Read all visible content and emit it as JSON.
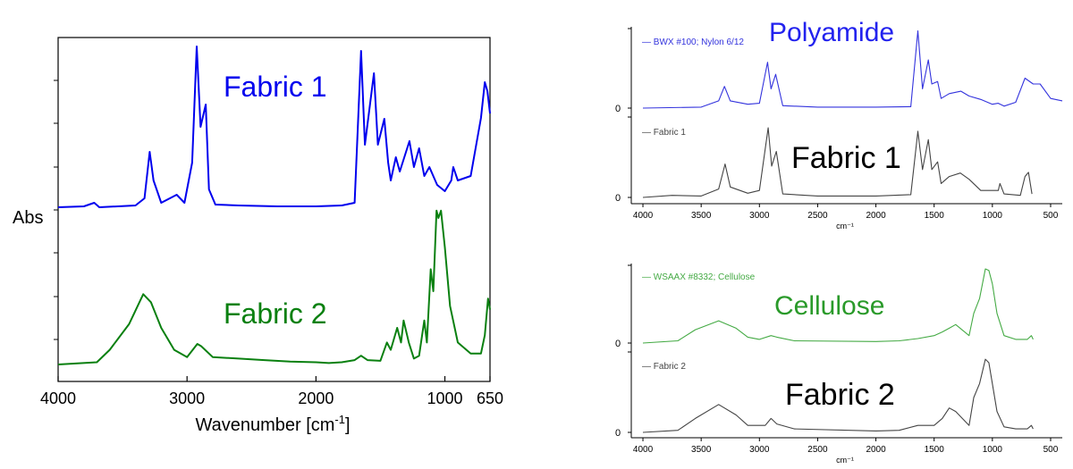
{
  "chart_data": [
    {
      "type": "line",
      "panel": "left",
      "xlabel": "Wavenumber [cm-1]",
      "xlabel_main": "Wavenumber [cm",
      "xlabel_sup": "-1",
      "xlabel_end": "]",
      "ylabel": "Abs",
      "xlim": [
        4000,
        650
      ],
      "x_ticks": [
        "4000",
        "3000",
        "2000",
        "1000",
        "650"
      ],
      "series": [
        {
          "name": "Fabric 1",
          "color": "#0000ee",
          "label": "Fabric 1",
          "points": [
            [
              4000,
              0
            ],
            [
              3800,
              0.01
            ],
            [
              3720,
              0.05
            ],
            [
              3680,
              0
            ],
            [
              3400,
              0.02
            ],
            [
              3330,
              0.1
            ],
            [
              3290,
              0.62
            ],
            [
              3260,
              0.3
            ],
            [
              3200,
              0.05
            ],
            [
              3080,
              0.14
            ],
            [
              3020,
              0.05
            ],
            [
              2960,
              0.5
            ],
            [
              2925,
              1.8
            ],
            [
              2895,
              0.9
            ],
            [
              2855,
              1.15
            ],
            [
              2830,
              0.2
            ],
            [
              2780,
              0.03
            ],
            [
              2600,
              0.02
            ],
            [
              2300,
              0.01
            ],
            [
              2000,
              0.01
            ],
            [
              1800,
              0.02
            ],
            [
              1700,
              0.05
            ],
            [
              1650,
              1.75
            ],
            [
              1620,
              0.7
            ],
            [
              1550,
              1.5
            ],
            [
              1520,
              0.7
            ],
            [
              1470,
              0.99
            ],
            [
              1440,
              0.5
            ],
            [
              1420,
              0.3
            ],
            [
              1380,
              0.56
            ],
            [
              1350,
              0.4
            ],
            [
              1275,
              0.74
            ],
            [
              1240,
              0.45
            ],
            [
              1200,
              0.66
            ],
            [
              1160,
              0.35
            ],
            [
              1120,
              0.45
            ],
            [
              1060,
              0.25
            ],
            [
              1000,
              0.18
            ],
            [
              950,
              0.3
            ],
            [
              935,
              0.45
            ],
            [
              900,
              0.3
            ],
            [
              800,
              0.35
            ],
            [
              720,
              1.0
            ],
            [
              690,
              1.4
            ],
            [
              670,
              1.3
            ],
            [
              650,
              1.05
            ]
          ]
        },
        {
          "name": "Fabric 2",
          "color": "#0a8010",
          "label": "Fabric 2",
          "points": [
            [
              4000,
              0
            ],
            [
              3700,
              0.03
            ],
            [
              3600,
              0.2
            ],
            [
              3450,
              0.55
            ],
            [
              3340,
              0.96
            ],
            [
              3280,
              0.85
            ],
            [
              3200,
              0.5
            ],
            [
              3100,
              0.2
            ],
            [
              3000,
              0.1
            ],
            [
              2920,
              0.28
            ],
            [
              2890,
              0.25
            ],
            [
              2800,
              0.1
            ],
            [
              2600,
              0.08
            ],
            [
              2400,
              0.06
            ],
            [
              2200,
              0.04
            ],
            [
              2000,
              0.03
            ],
            [
              1900,
              0.02
            ],
            [
              1800,
              0.03
            ],
            [
              1700,
              0.06
            ],
            [
              1650,
              0.12
            ],
            [
              1600,
              0.06
            ],
            [
              1500,
              0.05
            ],
            [
              1450,
              0.3
            ],
            [
              1420,
              0.2
            ],
            [
              1370,
              0.5
            ],
            [
              1340,
              0.3
            ],
            [
              1320,
              0.6
            ],
            [
              1280,
              0.3
            ],
            [
              1240,
              0.08
            ],
            [
              1200,
              0.12
            ],
            [
              1160,
              0.6
            ],
            [
              1140,
              0.3
            ],
            [
              1110,
              1.3
            ],
            [
              1090,
              1.0
            ],
            [
              1065,
              2.1
            ],
            [
              1050,
              2.0
            ],
            [
              1030,
              2.1
            ],
            [
              1000,
              1.6
            ],
            [
              960,
              0.8
            ],
            [
              900,
              0.3
            ],
            [
              800,
              0.15
            ],
            [
              720,
              0.15
            ],
            [
              690,
              0.4
            ],
            [
              665,
              0.9
            ],
            [
              650,
              0.75
            ]
          ]
        }
      ]
    },
    {
      "type": "line",
      "panel": "right-top",
      "xlabel": "cm⁻¹",
      "title": "Polyamide",
      "xlim": [
        4100,
        400
      ],
      "x_ticks": [
        "4000",
        "3500",
        "3000",
        "2500",
        "2000",
        "1500",
        "1000",
        "500"
      ],
      "series": [
        {
          "name": "BWX #100; Nylon 6/12",
          "color": "#3333dd",
          "label": "Polyamide",
          "points": [
            [
              4000,
              0
            ],
            [
              3500,
              0.02
            ],
            [
              3350,
              0.15
            ],
            [
              3300,
              0.45
            ],
            [
              3250,
              0.15
            ],
            [
              3100,
              0.08
            ],
            [
              3000,
              0.1
            ],
            [
              2930,
              0.95
            ],
            [
              2900,
              0.4
            ],
            [
              2860,
              0.7
            ],
            [
              2800,
              0.05
            ],
            [
              2500,
              0.02
            ],
            [
              2000,
              0.02
            ],
            [
              1700,
              0.03
            ],
            [
              1640,
              1.6
            ],
            [
              1600,
              0.4
            ],
            [
              1550,
              1.0
            ],
            [
              1520,
              0.5
            ],
            [
              1470,
              0.55
            ],
            [
              1440,
              0.2
            ],
            [
              1370,
              0.3
            ],
            [
              1270,
              0.35
            ],
            [
              1200,
              0.25
            ],
            [
              1100,
              0.18
            ],
            [
              1000,
              0.08
            ],
            [
              950,
              0.1
            ],
            [
              900,
              0.04
            ],
            [
              800,
              0.12
            ],
            [
              720,
              0.62
            ],
            [
              650,
              0.5
            ],
            [
              590,
              0.5
            ],
            [
              500,
              0.2
            ],
            [
              400,
              0.15
            ]
          ]
        },
        {
          "name": "Fabric 1",
          "color": "#444444",
          "label": "Fabric 1",
          "points": [
            [
              4000,
              0
            ],
            [
              3750,
              0.03
            ],
            [
              3500,
              0.02
            ],
            [
              3350,
              0.12
            ],
            [
              3295,
              0.48
            ],
            [
              3250,
              0.15
            ],
            [
              3100,
              0.06
            ],
            [
              3000,
              0.1
            ],
            [
              2925,
              1.0
            ],
            [
              2895,
              0.45
            ],
            [
              2855,
              0.66
            ],
            [
              2800,
              0.05
            ],
            [
              2500,
              0.02
            ],
            [
              2000,
              0.02
            ],
            [
              1700,
              0.04
            ],
            [
              1640,
              0.95
            ],
            [
              1600,
              0.4
            ],
            [
              1550,
              0.83
            ],
            [
              1520,
              0.4
            ],
            [
              1470,
              0.51
            ],
            [
              1440,
              0.2
            ],
            [
              1370,
              0.3
            ],
            [
              1275,
              0.35
            ],
            [
              1200,
              0.26
            ],
            [
              1100,
              0.1
            ],
            [
              950,
              0.1
            ],
            [
              935,
              0.2
            ],
            [
              900,
              0.05
            ],
            [
              760,
              0.03
            ],
            [
              720,
              0.3
            ],
            [
              690,
              0.36
            ],
            [
              660,
              0.05
            ]
          ]
        }
      ]
    },
    {
      "type": "line",
      "panel": "right-bottom",
      "xlabel": "cm⁻¹",
      "title": "Cellulose",
      "xlim": [
        4100,
        400
      ],
      "x_ticks": [
        "4000",
        "3500",
        "3000",
        "2500",
        "2000",
        "1500",
        "1000",
        "500"
      ],
      "series": [
        {
          "name": "WSAAX #8332; Cellulose",
          "color": "#44aa44",
          "label": "Cellulose",
          "points": [
            [
              4000,
              0
            ],
            [
              3700,
              0.03
            ],
            [
              3550,
              0.18
            ],
            [
              3350,
              0.3
            ],
            [
              3200,
              0.2
            ],
            [
              3100,
              0.08
            ],
            [
              3000,
              0.05
            ],
            [
              2900,
              0.1
            ],
            [
              2850,
              0.08
            ],
            [
              2700,
              0.03
            ],
            [
              2000,
              0.02
            ],
            [
              1800,
              0.03
            ],
            [
              1640,
              0.06
            ],
            [
              1500,
              0.1
            ],
            [
              1430,
              0.15
            ],
            [
              1370,
              0.2
            ],
            [
              1315,
              0.25
            ],
            [
              1200,
              0.1
            ],
            [
              1160,
              0.4
            ],
            [
              1110,
              0.6
            ],
            [
              1060,
              1.0
            ],
            [
              1030,
              0.98
            ],
            [
              1000,
              0.8
            ],
            [
              960,
              0.4
            ],
            [
              900,
              0.1
            ],
            [
              800,
              0.05
            ],
            [
              700,
              0.05
            ],
            [
              665,
              0.1
            ],
            [
              650,
              0.05
            ]
          ]
        },
        {
          "name": "Fabric 2",
          "color": "#444444",
          "label": "Fabric 2",
          "points": [
            [
              4000,
              0
            ],
            [
              3700,
              0.03
            ],
            [
              3550,
              0.2
            ],
            [
              3350,
              0.4
            ],
            [
              3200,
              0.25
            ],
            [
              3100,
              0.1
            ],
            [
              2950,
              0.1
            ],
            [
              2900,
              0.2
            ],
            [
              2850,
              0.12
            ],
            [
              2700,
              0.05
            ],
            [
              2000,
              0.02
            ],
            [
              1800,
              0.03
            ],
            [
              1640,
              0.1
            ],
            [
              1500,
              0.1
            ],
            [
              1430,
              0.2
            ],
            [
              1370,
              0.35
            ],
            [
              1315,
              0.3
            ],
            [
              1200,
              0.1
            ],
            [
              1160,
              0.5
            ],
            [
              1110,
              0.7
            ],
            [
              1060,
              1.05
            ],
            [
              1030,
              1.0
            ],
            [
              1000,
              0.7
            ],
            [
              960,
              0.3
            ],
            [
              900,
              0.08
            ],
            [
              800,
              0.05
            ],
            [
              700,
              0.05
            ],
            [
              665,
              0.1
            ],
            [
              650,
              0.05
            ]
          ]
        }
      ]
    }
  ]
}
